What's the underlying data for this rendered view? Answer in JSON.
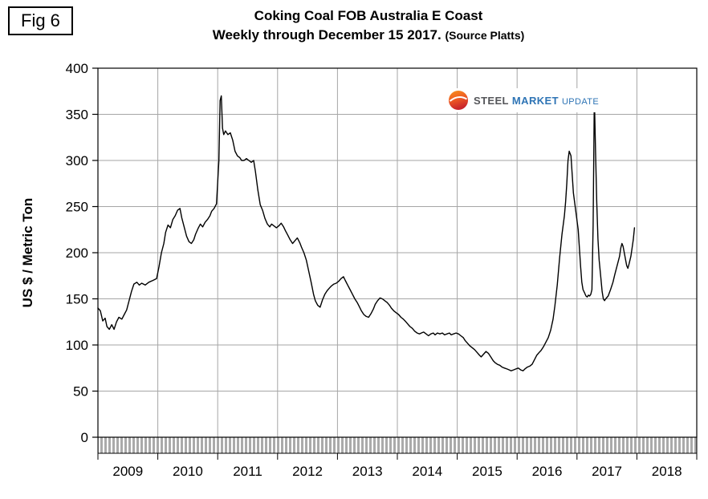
{
  "fig_label": "Fig 6",
  "title_line1": "Coking Coal FOB Australia E Coast",
  "title_line2_main": "Weekly through December 15 2017.",
  "title_line2_source": "(Source Platts)",
  "logo": {
    "word1": "STEEL",
    "word2": "MARKET",
    "word3": "UPDATE"
  },
  "chart_data": {
    "type": "line",
    "title": "Coking Coal FOB Australia E Coast",
    "subtitle": "Weekly through December 15 2017. (Source Platts)",
    "xlabel": "",
    "ylabel": "US $ / Metric Ton",
    "ylim": [
      0,
      400
    ],
    "yticks": [
      0,
      50,
      100,
      150,
      200,
      250,
      300,
      350,
      400
    ],
    "xlim": [
      2009,
      2019
    ],
    "x_year_labels": [
      "2009",
      "2010",
      "2011",
      "2012",
      "2013",
      "2014",
      "2015",
      "2016",
      "2017",
      "2018"
    ],
    "grid": true,
    "grid_color": "#a6a6a6",
    "line_color": "#000000",
    "band_color": "#aaaaaa",
    "legend": "none",
    "series": [
      {
        "name": "Coking Coal FOB Australia E Coast (US$ / metric ton)",
        "points": [
          [
            2009.0,
            140
          ],
          [
            2009.04,
            137
          ],
          [
            2009.08,
            126
          ],
          [
            2009.12,
            129
          ],
          [
            2009.15,
            120
          ],
          [
            2009.19,
            117
          ],
          [
            2009.23,
            122
          ],
          [
            2009.27,
            117
          ],
          [
            2009.31,
            125
          ],
          [
            2009.35,
            130
          ],
          [
            2009.4,
            128
          ],
          [
            2009.44,
            133
          ],
          [
            2009.48,
            138
          ],
          [
            2009.52,
            148
          ],
          [
            2009.56,
            158
          ],
          [
            2009.6,
            166
          ],
          [
            2009.65,
            168
          ],
          [
            2009.69,
            165
          ],
          [
            2009.73,
            167
          ],
          [
            2009.79,
            165
          ],
          [
            2009.85,
            168
          ],
          [
            2009.92,
            170
          ],
          [
            2009.98,
            172
          ],
          [
            2010.02,
            185
          ],
          [
            2010.06,
            200
          ],
          [
            2010.1,
            210
          ],
          [
            2010.13,
            222
          ],
          [
            2010.17,
            230
          ],
          [
            2010.21,
            227
          ],
          [
            2010.25,
            236
          ],
          [
            2010.29,
            240
          ],
          [
            2010.33,
            246
          ],
          [
            2010.37,
            248
          ],
          [
            2010.4,
            238
          ],
          [
            2010.44,
            228
          ],
          [
            2010.48,
            218
          ],
          [
            2010.52,
            212
          ],
          [
            2010.56,
            210
          ],
          [
            2010.6,
            214
          ],
          [
            2010.63,
            220
          ],
          [
            2010.67,
            226
          ],
          [
            2010.71,
            231
          ],
          [
            2010.75,
            228
          ],
          [
            2010.79,
            233
          ],
          [
            2010.83,
            236
          ],
          [
            2010.87,
            240
          ],
          [
            2010.9,
            245
          ],
          [
            2010.94,
            248
          ],
          [
            2010.98,
            253
          ],
          [
            2011.02,
            300
          ],
          [
            2011.04,
            365
          ],
          [
            2011.06,
            370
          ],
          [
            2011.08,
            335
          ],
          [
            2011.1,
            328
          ],
          [
            2011.13,
            332
          ],
          [
            2011.17,
            328
          ],
          [
            2011.21,
            330
          ],
          [
            2011.25,
            322
          ],
          [
            2011.29,
            310
          ],
          [
            2011.33,
            305
          ],
          [
            2011.37,
            303
          ],
          [
            2011.4,
            300
          ],
          [
            2011.44,
            300
          ],
          [
            2011.48,
            302
          ],
          [
            2011.52,
            300
          ],
          [
            2011.56,
            298
          ],
          [
            2011.6,
            300
          ],
          [
            2011.63,
            288
          ],
          [
            2011.67,
            268
          ],
          [
            2011.71,
            252
          ],
          [
            2011.75,
            246
          ],
          [
            2011.79,
            237
          ],
          [
            2011.83,
            231
          ],
          [
            2011.87,
            228
          ],
          [
            2011.9,
            231
          ],
          [
            2011.94,
            229
          ],
          [
            2011.98,
            227
          ],
          [
            2012.02,
            229
          ],
          [
            2012.06,
            232
          ],
          [
            2012.1,
            228
          ],
          [
            2012.13,
            224
          ],
          [
            2012.17,
            219
          ],
          [
            2012.21,
            214
          ],
          [
            2012.25,
            210
          ],
          [
            2012.29,
            213
          ],
          [
            2012.33,
            216
          ],
          [
            2012.37,
            211
          ],
          [
            2012.4,
            206
          ],
          [
            2012.44,
            200
          ],
          [
            2012.48,
            192
          ],
          [
            2012.52,
            180
          ],
          [
            2012.56,
            168
          ],
          [
            2012.6,
            155
          ],
          [
            2012.63,
            148
          ],
          [
            2012.67,
            143
          ],
          [
            2012.71,
            141
          ],
          [
            2012.75,
            149
          ],
          [
            2012.79,
            155
          ],
          [
            2012.83,
            159
          ],
          [
            2012.87,
            162
          ],
          [
            2012.9,
            164
          ],
          [
            2012.94,
            166
          ],
          [
            2012.98,
            167
          ],
          [
            2013.02,
            169
          ],
          [
            2013.06,
            172
          ],
          [
            2013.1,
            174
          ],
          [
            2013.13,
            170
          ],
          [
            2013.17,
            165
          ],
          [
            2013.21,
            160
          ],
          [
            2013.25,
            155
          ],
          [
            2013.29,
            150
          ],
          [
            2013.33,
            146
          ],
          [
            2013.37,
            141
          ],
          [
            2013.4,
            137
          ],
          [
            2013.44,
            133
          ],
          [
            2013.48,
            131
          ],
          [
            2013.52,
            130
          ],
          [
            2013.56,
            134
          ],
          [
            2013.6,
            139
          ],
          [
            2013.63,
            144
          ],
          [
            2013.67,
            148
          ],
          [
            2013.71,
            151
          ],
          [
            2013.75,
            150
          ],
          [
            2013.79,
            148
          ],
          [
            2013.83,
            146
          ],
          [
            2013.87,
            143
          ],
          [
            2013.9,
            140
          ],
          [
            2013.94,
            137
          ],
          [
            2013.98,
            135
          ],
          [
            2014.02,
            133
          ],
          [
            2014.06,
            130
          ],
          [
            2014.1,
            128
          ],
          [
            2014.13,
            126
          ],
          [
            2014.17,
            123
          ],
          [
            2014.21,
            120
          ],
          [
            2014.25,
            118
          ],
          [
            2014.29,
            115
          ],
          [
            2014.33,
            113
          ],
          [
            2014.37,
            112
          ],
          [
            2014.4,
            113
          ],
          [
            2014.44,
            114
          ],
          [
            2014.48,
            112
          ],
          [
            2014.52,
            110
          ],
          [
            2014.56,
            112
          ],
          [
            2014.6,
            113
          ],
          [
            2014.63,
            111
          ],
          [
            2014.67,
            113
          ],
          [
            2014.71,
            112
          ],
          [
            2014.75,
            113
          ],
          [
            2014.79,
            111
          ],
          [
            2014.83,
            112
          ],
          [
            2014.87,
            113
          ],
          [
            2014.9,
            111
          ],
          [
            2014.94,
            112
          ],
          [
            2014.98,
            113
          ],
          [
            2015.02,
            112
          ],
          [
            2015.06,
            110
          ],
          [
            2015.1,
            108
          ],
          [
            2015.13,
            105
          ],
          [
            2015.17,
            102
          ],
          [
            2015.21,
            99
          ],
          [
            2015.25,
            97
          ],
          [
            2015.29,
            95
          ],
          [
            2015.33,
            92
          ],
          [
            2015.37,
            89
          ],
          [
            2015.4,
            87
          ],
          [
            2015.44,
            90
          ],
          [
            2015.48,
            93
          ],
          [
            2015.52,
            91
          ],
          [
            2015.56,
            87
          ],
          [
            2015.6,
            83
          ],
          [
            2015.63,
            81
          ],
          [
            2015.67,
            79
          ],
          [
            2015.71,
            78
          ],
          [
            2015.75,
            76
          ],
          [
            2015.79,
            75
          ],
          [
            2015.83,
            74
          ],
          [
            2015.87,
            73
          ],
          [
            2015.9,
            72
          ],
          [
            2015.94,
            73
          ],
          [
            2015.98,
            74
          ],
          [
            2016.02,
            75
          ],
          [
            2016.06,
            73
          ],
          [
            2016.1,
            72
          ],
          [
            2016.13,
            74
          ],
          [
            2016.17,
            76
          ],
          [
            2016.21,
            77
          ],
          [
            2016.25,
            79
          ],
          [
            2016.29,
            84
          ],
          [
            2016.33,
            89
          ],
          [
            2016.37,
            92
          ],
          [
            2016.4,
            94
          ],
          [
            2016.44,
            98
          ],
          [
            2016.48,
            103
          ],
          [
            2016.52,
            108
          ],
          [
            2016.56,
            116
          ],
          [
            2016.6,
            128
          ],
          [
            2016.63,
            142
          ],
          [
            2016.67,
            165
          ],
          [
            2016.71,
            195
          ],
          [
            2016.75,
            220
          ],
          [
            2016.79,
            240
          ],
          [
            2016.81,
            255
          ],
          [
            2016.83,
            275
          ],
          [
            2016.85,
            300
          ],
          [
            2016.87,
            310
          ],
          [
            2016.9,
            305
          ],
          [
            2016.92,
            285
          ],
          [
            2016.94,
            265
          ],
          [
            2016.98,
            245
          ],
          [
            2017.02,
            225
          ],
          [
            2017.04,
            205
          ],
          [
            2017.06,
            185
          ],
          [
            2017.08,
            168
          ],
          [
            2017.1,
            160
          ],
          [
            2017.13,
            156
          ],
          [
            2017.15,
            153
          ],
          [
            2017.17,
            152
          ],
          [
            2017.19,
            154
          ],
          [
            2017.21,
            153
          ],
          [
            2017.23,
            155
          ],
          [
            2017.25,
            160
          ],
          [
            2017.27,
            230
          ],
          [
            2017.29,
            370
          ],
          [
            2017.31,
            310
          ],
          [
            2017.33,
            255
          ],
          [
            2017.35,
            215
          ],
          [
            2017.37,
            192
          ],
          [
            2017.4,
            172
          ],
          [
            2017.42,
            158
          ],
          [
            2017.44,
            150
          ],
          [
            2017.46,
            148
          ],
          [
            2017.48,
            150
          ],
          [
            2017.52,
            153
          ],
          [
            2017.56,
            160
          ],
          [
            2017.6,
            168
          ],
          [
            2017.63,
            176
          ],
          [
            2017.67,
            186
          ],
          [
            2017.71,
            196
          ],
          [
            2017.73,
            205
          ],
          [
            2017.75,
            210
          ],
          [
            2017.77,
            207
          ],
          [
            2017.79,
            200
          ],
          [
            2017.81,
            193
          ],
          [
            2017.83,
            186
          ],
          [
            2017.85,
            183
          ],
          [
            2017.87,
            188
          ],
          [
            2017.9,
            196
          ],
          [
            2017.92,
            205
          ],
          [
            2017.94,
            214
          ],
          [
            2017.96,
            227
          ]
        ]
      }
    ]
  }
}
